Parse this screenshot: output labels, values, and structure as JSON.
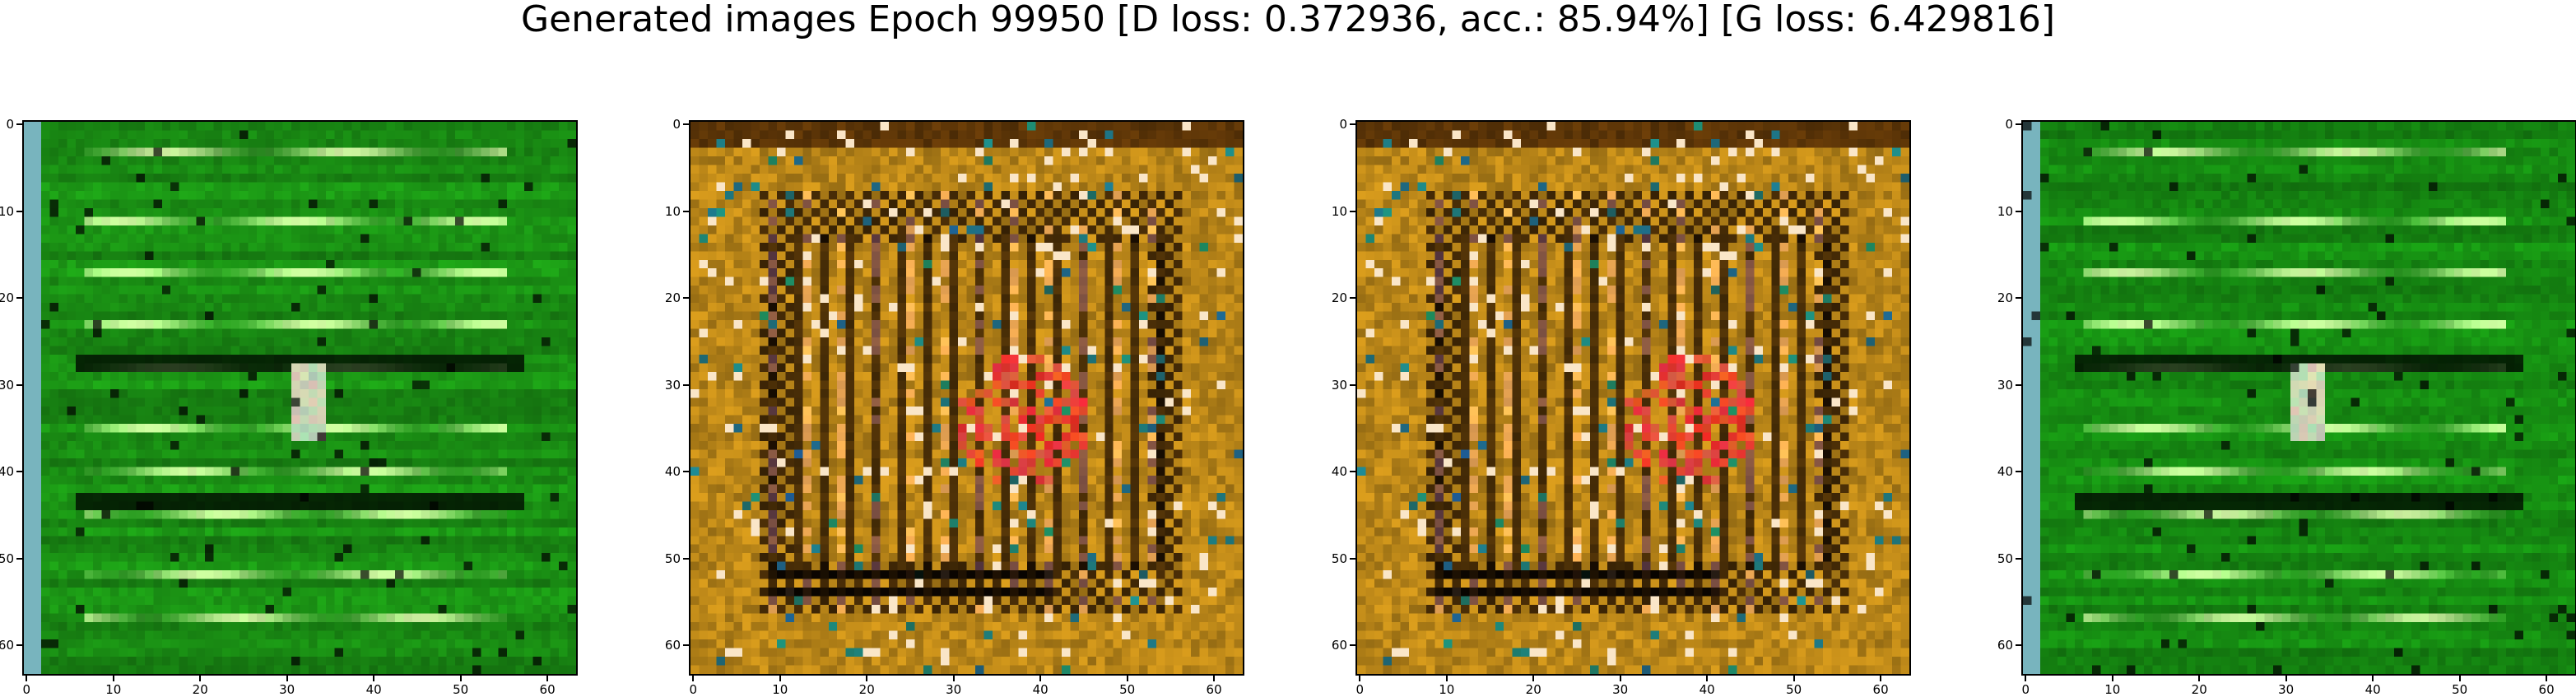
{
  "figure": {
    "title": "Generated images Epoch 99950 [D loss: 0.372936, acc.: 85.94%] [G loss: 6.429816]"
  },
  "panels": [
    {
      "image": "generated-sample-1",
      "dominant_color": "#1a8f14",
      "style": "horizontal stripes"
    },
    {
      "image": "generated-sample-2",
      "dominant_color": "#c8901a",
      "style": "checker grid"
    },
    {
      "image": "generated-sample-3",
      "dominant_color": "#c8901a",
      "style": "checker grid"
    },
    {
      "image": "generated-sample-4",
      "dominant_color": "#168c12",
      "style": "horizontal stripes"
    }
  ],
  "axes": {
    "x_ticks": [
      "0",
      "10",
      "20",
      "30",
      "40",
      "50",
      "60"
    ],
    "y_ticks": [
      "0",
      "10",
      "20",
      "30",
      "40",
      "50",
      "60"
    ],
    "x_range": [
      -0.5,
      63.5
    ],
    "y_range": [
      -0.5,
      63.5
    ]
  }
}
